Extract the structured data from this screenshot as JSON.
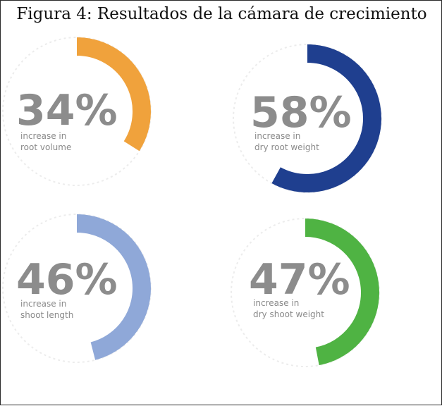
{
  "title": "Figura 4: Resultados de la cámara de crecimiento",
  "chart_data": {
    "type": "donut-gauge",
    "title": "Figura 4: Resultados de la cámara de crecimiento",
    "items": [
      {
        "value": 34,
        "label": "34%",
        "caption_lines": [
          "increase in",
          "root volume"
        ],
        "color": "#f0a23c"
      },
      {
        "value": 58,
        "label": "58%",
        "caption_lines": [
          "increase in",
          "dry root weight"
        ],
        "color": "#1f3f8f"
      },
      {
        "value": 46,
        "label": "46%",
        "caption_lines": [
          "increase in",
          "shoot length"
        ],
        "color": "#8fa8d8"
      },
      {
        "value": 47,
        "label": "47%",
        "caption_lines": [
          "increase in",
          "dry shoot weight"
        ],
        "color": "#4fb343"
      }
    ]
  }
}
